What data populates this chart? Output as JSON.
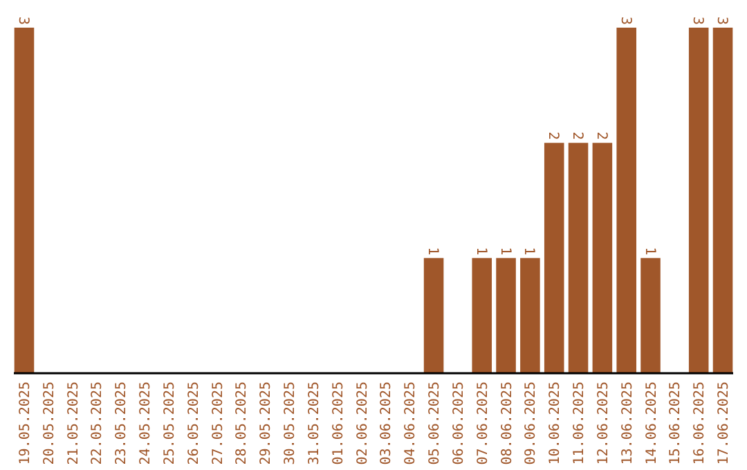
{
  "chart_data": {
    "type": "bar",
    "categories": [
      "19.05.2025",
      "20.05.2025",
      "21.05.2025",
      "22.05.2025",
      "23.05.2025",
      "24.05.2025",
      "25.05.2025",
      "26.05.2025",
      "27.05.2025",
      "28.05.2025",
      "29.05.2025",
      "30.05.2025",
      "31.05.2025",
      "01.06.2025",
      "02.06.2025",
      "03.06.2025",
      "04.06.2025",
      "05.06.2025",
      "06.06.2025",
      "07.06.2025",
      "08.06.2025",
      "09.06.2025",
      "10.06.2025",
      "11.06.2025",
      "12.06.2025",
      "13.06.2025",
      "14.06.2025",
      "15.06.2025",
      "16.06.2025",
      "17.06.2025"
    ],
    "values": [
      3,
      0,
      0,
      0,
      0,
      0,
      0,
      0,
      0,
      0,
      0,
      0,
      0,
      0,
      0,
      0,
      0,
      1,
      0,
      1,
      1,
      1,
      2,
      2,
      2,
      3,
      1,
      0,
      3,
      3
    ],
    "value_labels": [
      "3",
      null,
      null,
      null,
      null,
      null,
      null,
      null,
      null,
      null,
      null,
      null,
      null,
      null,
      null,
      null,
      null,
      "1",
      null,
      "1",
      "1",
      "1",
      "2",
      "2",
      "2",
      "3",
      "1",
      null,
      "3",
      "3"
    ],
    "color": "#a0572a"
  }
}
